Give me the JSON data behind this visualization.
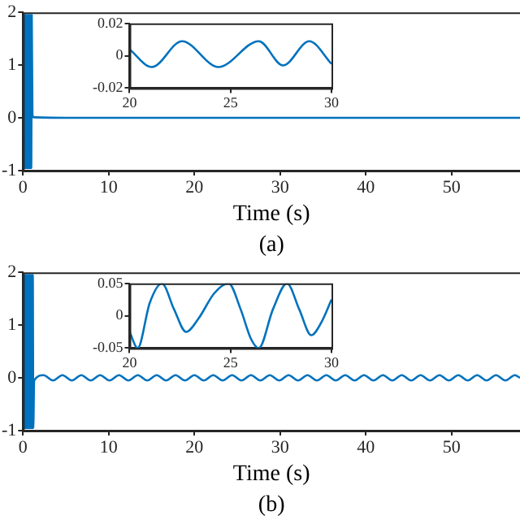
{
  "chart_data": [
    {
      "type": "line",
      "xlabel": "Time (s)",
      "annotations": [
        "(a)"
      ],
      "xlim": [
        0,
        58
      ],
      "xticks": [
        0,
        10,
        20,
        30,
        40,
        50
      ],
      "ylim": [
        -1,
        2
      ],
      "yticks": [
        -1,
        0,
        1,
        2
      ],
      "grid": false,
      "legend": false,
      "marker": "none",
      "series": [
        {
          "color": "#0072bd",
          "x": [
            0,
            0.06,
            0.12,
            0.18,
            0.24,
            0.3,
            0.36,
            0.42,
            0.48,
            0.54,
            0.6,
            0.66,
            0.72,
            0.78,
            0.84,
            0.9,
            0.96,
            1.02,
            1.1,
            1.3,
            5,
            10,
            15,
            20,
            25,
            30,
            35,
            40,
            45,
            50,
            55,
            58
          ],
          "values": [
            0,
            1.95,
            -0.95,
            1.95,
            -0.95,
            1.95,
            -0.95,
            1.95,
            -0.95,
            1.95,
            -0.95,
            1.95,
            -0.95,
            1.95,
            -0.95,
            1.95,
            -0.95,
            1.95,
            0.05,
            0.01,
            0,
            0,
            0,
            0,
            0,
            0,
            0,
            0,
            0,
            0,
            0,
            0
          ]
        }
      ]
    },
    {
      "type": "line",
      "xlim": [
        20,
        30
      ],
      "xticks": [
        20,
        25,
        30
      ],
      "ylim": [
        -0.02,
        0.02
      ],
      "yticks": [
        -0.02,
        0,
        0.02
      ],
      "grid": false,
      "legend": false,
      "marker": "none",
      "series": [
        {
          "color": "#0072bd",
          "x": [
            20,
            21.1,
            22.6,
            24.4,
            26.4,
            27.6,
            28.9,
            30
          ],
          "values": [
            0.004,
            -0.007,
            0.009,
            -0.007,
            0.009,
            -0.006,
            0.009,
            -0.005
          ]
        }
      ]
    },
    {
      "type": "line",
      "xlabel": "Time (s)",
      "annotations": [
        "(b)"
      ],
      "xlim": [
        0,
        58
      ],
      "xticks": [
        0,
        10,
        20,
        30,
        40,
        50
      ],
      "ylim": [
        -1,
        2
      ],
      "yticks": [
        -1,
        0,
        1,
        2
      ],
      "grid": false,
      "legend": false,
      "marker": "none",
      "series": [
        {
          "color": "#0072bd",
          "x": [
            0,
            0.06,
            0.12,
            0.18,
            0.24,
            0.3,
            0.36,
            0.42,
            0.48,
            0.54,
            0.6,
            0.66,
            0.72,
            0.78,
            0.84,
            0.9,
            0.96,
            1.02,
            1.08,
            1.14,
            1.2,
            1.3,
            2.4,
            3.5,
            4.6,
            5.7,
            6.8,
            7.9,
            9,
            10.1,
            11.2,
            12.3,
            13.4,
            14.5,
            15.6,
            16.7,
            17.8,
            18.9,
            20,
            21.1,
            22.2,
            23.3,
            24.4,
            25.5,
            26.6,
            27.7,
            28.8,
            29.9,
            31,
            32.1,
            33.2,
            34.3,
            35.4,
            36.5,
            37.6,
            38.7,
            39.8,
            40.9,
            42,
            43.1,
            44.2,
            45.3,
            46.4,
            47.5,
            48.6,
            49.7,
            50.8,
            51.9,
            53,
            54.1,
            55.2,
            56.3,
            57.4,
            58
          ],
          "values": [
            0,
            1.95,
            -0.95,
            1.95,
            -0.95,
            1.95,
            -0.95,
            1.95,
            -0.95,
            1.95,
            -0.95,
            1.95,
            -0.95,
            1.95,
            -0.95,
            1.95,
            -0.95,
            1.95,
            -0.95,
            1.95,
            -0.95,
            -0.05,
            0.05,
            -0.05,
            0.05,
            -0.05,
            0.05,
            -0.05,
            0.05,
            -0.05,
            0.05,
            -0.05,
            0.05,
            -0.05,
            0.05,
            -0.05,
            0.05,
            -0.05,
            0.05,
            -0.05,
            0.05,
            -0.05,
            0.05,
            -0.05,
            0.05,
            -0.05,
            0.05,
            -0.05,
            0.05,
            -0.05,
            0.05,
            -0.05,
            0.05,
            -0.05,
            0.05,
            -0.05,
            0.05,
            -0.05,
            0.05,
            -0.05,
            0.05,
            -0.05,
            0.05,
            -0.05,
            0.05,
            -0.05,
            0.05,
            -0.05,
            0.05,
            -0.05,
            0.05,
            -0.05,
            0.05,
            0
          ]
        }
      ]
    },
    {
      "type": "line",
      "xlim": [
        20,
        30
      ],
      "xticks": [
        20,
        25,
        30
      ],
      "ylim": [
        -0.05,
        0.05
      ],
      "yticks": [
        -0.05,
        0,
        0.05
      ],
      "grid": false,
      "legend": false,
      "marker": "none",
      "series": [
        {
          "color": "#0072bd",
          "x": [
            20,
            20.4,
            21,
            21.6,
            22.2,
            22.8,
            23.4,
            24.2,
            24.9,
            25.5,
            26,
            26.4,
            27.1,
            27.8,
            28.4,
            29,
            29.5,
            30
          ],
          "values": [
            -0.025,
            -0.05,
            0.02,
            0.05,
            0.01,
            -0.025,
            -0.005,
            0.035,
            0.05,
            0.01,
            -0.035,
            -0.05,
            0.01,
            0.05,
            0.01,
            -0.03,
            -0.01,
            0.025
          ]
        }
      ]
    }
  ]
}
